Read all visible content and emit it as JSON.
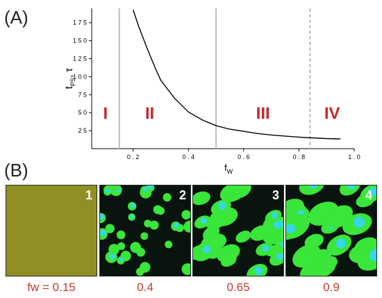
{
  "panel_a": {
    "label": "(A)"
  },
  "panel_b": {
    "label": "(B)"
  },
  "chart_data": {
    "type": "line",
    "ylabel_main": "t",
    "ylabel_sub": "PS",
    "ylabel_tail": ", τ",
    "xlabel_main": "f",
    "xlabel_sub": "W",
    "xlim": [
      0.05,
      1.0
    ],
    "ylim": [
      0,
      195
    ],
    "xticks": [
      0.2,
      0.4,
      0.6,
      0.8,
      1.0
    ],
    "xtick_labels": [
      "0 . 2",
      "0 . 4",
      "0 . 6",
      "0 . 8",
      "1 . 0"
    ],
    "yticks": [
      25,
      50,
      75,
      100,
      125,
      150,
      175
    ],
    "ytick_labels": [
      "2 5",
      "5 0",
      "7 5",
      "1 0 0",
      "1 2 5",
      "1 5 0",
      "1 7 5"
    ],
    "series": [
      {
        "x": [
          0.2,
          0.22,
          0.25,
          0.28,
          0.3,
          0.35,
          0.4,
          0.45,
          0.5,
          0.55,
          0.6,
          0.65,
          0.7,
          0.75,
          0.8,
          0.85,
          0.9,
          0.95
        ],
        "y": [
          193,
          170,
          140,
          112,
          95,
          70,
          51,
          40,
          32,
          27,
          24,
          21,
          19,
          17.5,
          16,
          15,
          14,
          13.5
        ]
      }
    ],
    "boundaries": [
      {
        "x": 0.15,
        "style": "solid"
      },
      {
        "x": 0.5,
        "style": "solid"
      },
      {
        "x": 0.84,
        "style": "dashed"
      }
    ],
    "regions": [
      {
        "label": "I",
        "x": 0.1,
        "y": 50
      },
      {
        "label": "II",
        "x": 0.26,
        "y": 50
      },
      {
        "label": "III",
        "x": 0.67,
        "y": 50
      },
      {
        "label": "IV",
        "x": 0.92,
        "y": 50
      }
    ],
    "colors": {
      "line": "#000000",
      "boundary": "#bdbdbd",
      "region_label": "#c62828"
    }
  },
  "tiles": [
    {
      "number": "1",
      "caption": "fw = 0.15"
    },
    {
      "number": "2",
      "caption": "0.4"
    },
    {
      "number": "3",
      "caption": "0.65"
    },
    {
      "number": "4",
      "caption": "0.9"
    }
  ],
  "tile_colors": {
    "olive": "#8f8f24",
    "green": "#39e639",
    "cyan": "#36d6e8",
    "dark": "#0a140e"
  }
}
